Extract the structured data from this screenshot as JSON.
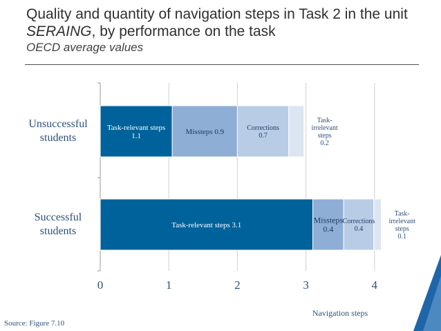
{
  "title": {
    "part1": "Quality and quantity of navigation steps in Task 2 in the unit",
    "part2_italic": "SERAING",
    "part2_rest": ", by performance on the task",
    "subtitle": "OECD average values"
  },
  "source": "Source: Figure 7.10",
  "chart_data": {
    "type": "bar",
    "orientation": "horizontal",
    "stacked": true,
    "categories": [
      "Unsuccessful students",
      "Successful students"
    ],
    "series": [
      {
        "name": "Task-relevant steps",
        "color": "#00629b",
        "values": [
          1.05,
          3.1
        ],
        "labels": [
          [
            "Task-relevant steps",
            "1.1"
          ],
          [
            "Task-relevant steps 3.1"
          ]
        ]
      },
      {
        "name": "Missteps",
        "color": "#8eaed6",
        "values": [
          0.95,
          0.45
        ],
        "labels": [
          [
            "Missteps 0.9"
          ],
          [
            "Missteps",
            "0.4"
          ]
        ]
      },
      {
        "name": "Corrections",
        "color": "#b8cce6",
        "values": [
          0.75,
          0.44
        ],
        "labels": [
          [
            "Corrections",
            "0.7"
          ],
          [
            "Corrections",
            "0.4"
          ]
        ]
      },
      {
        "name": "Task-irrelevant steps",
        "color": "#dce6f2",
        "values": [
          0.22,
          0.11
        ],
        "labels": [
          [
            "Task-",
            "irrelevant",
            "steps",
            "0.2"
          ],
          [
            "Task-",
            "irrelevant",
            "steps",
            "0.1"
          ]
        ]
      }
    ],
    "xlim": [
      0,
      4.5
    ],
    "xticks": [
      0,
      1,
      2,
      3,
      4
    ],
    "xlabel": "Navigation steps",
    "grid": true
  }
}
